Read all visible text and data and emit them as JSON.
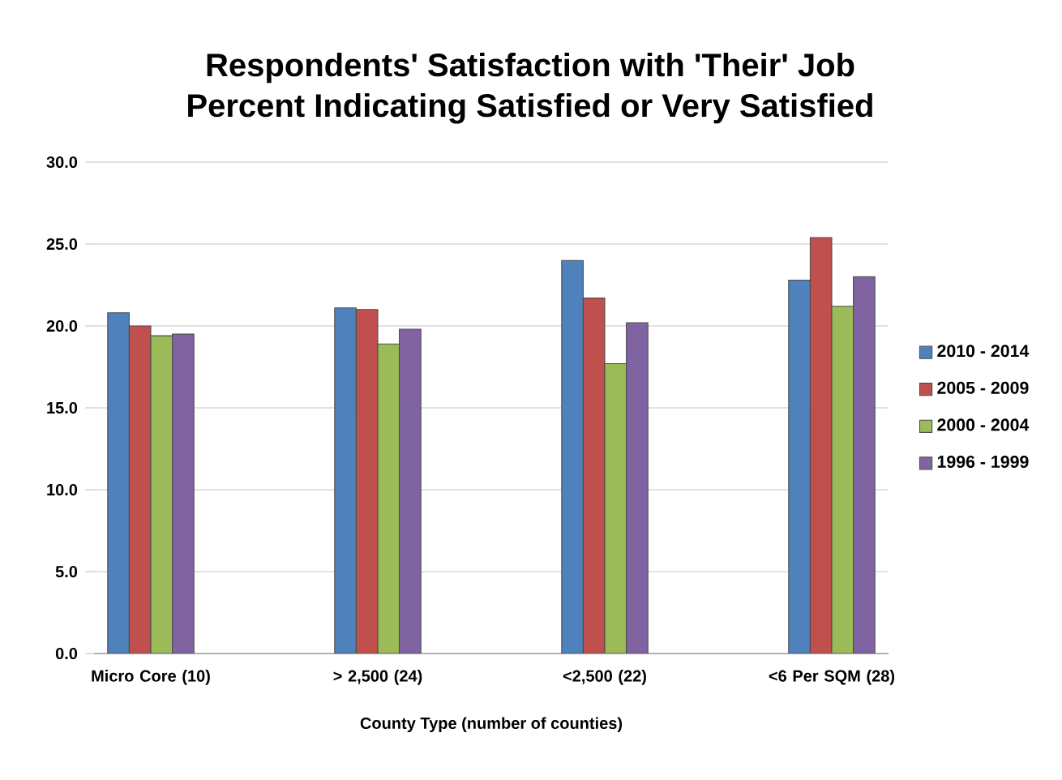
{
  "chart_data": {
    "type": "bar",
    "title": "Respondents' Satisfaction with 'Their' Job",
    "subtitle": "Percent Indicating Satisfied or Very Satisfied",
    "xlabel": "County Type (number of counties)",
    "categories": [
      "Micro Core (10)",
      null,
      "> 2,500 (24)",
      null,
      "<2,500 (22)",
      null,
      "<6 Per SQM (28)"
    ],
    "series": [
      {
        "name": "2010 - 2014",
        "color": "#4f81bd",
        "values": [
          20.8,
          null,
          21.1,
          null,
          24.0,
          null,
          22.8
        ]
      },
      {
        "name": "2005 - 2009",
        "color": "#c0504d",
        "values": [
          20.0,
          null,
          21.0,
          null,
          21.7,
          null,
          25.4
        ]
      },
      {
        "name": "2000 - 2004",
        "color": "#9bbb59",
        "values": [
          19.4,
          null,
          18.9,
          null,
          17.7,
          null,
          21.2
        ]
      },
      {
        "name": "1996 - 1999",
        "color": "#8064a2",
        "values": [
          19.5,
          null,
          19.8,
          null,
          20.2,
          null,
          23.0
        ]
      }
    ],
    "ylim": [
      0,
      30
    ],
    "yticks": [
      {
        "value": 0,
        "label": "0.0"
      },
      {
        "value": 5,
        "label": "5.0"
      },
      {
        "value": 10,
        "label": "10.0"
      },
      {
        "value": 15,
        "label": "15.0"
      },
      {
        "value": 20,
        "label": "20.0"
      },
      {
        "value": 25,
        "label": "25.0"
      },
      {
        "value": 30,
        "label": "30.0"
      }
    ],
    "grid": "y",
    "legend": "right"
  }
}
